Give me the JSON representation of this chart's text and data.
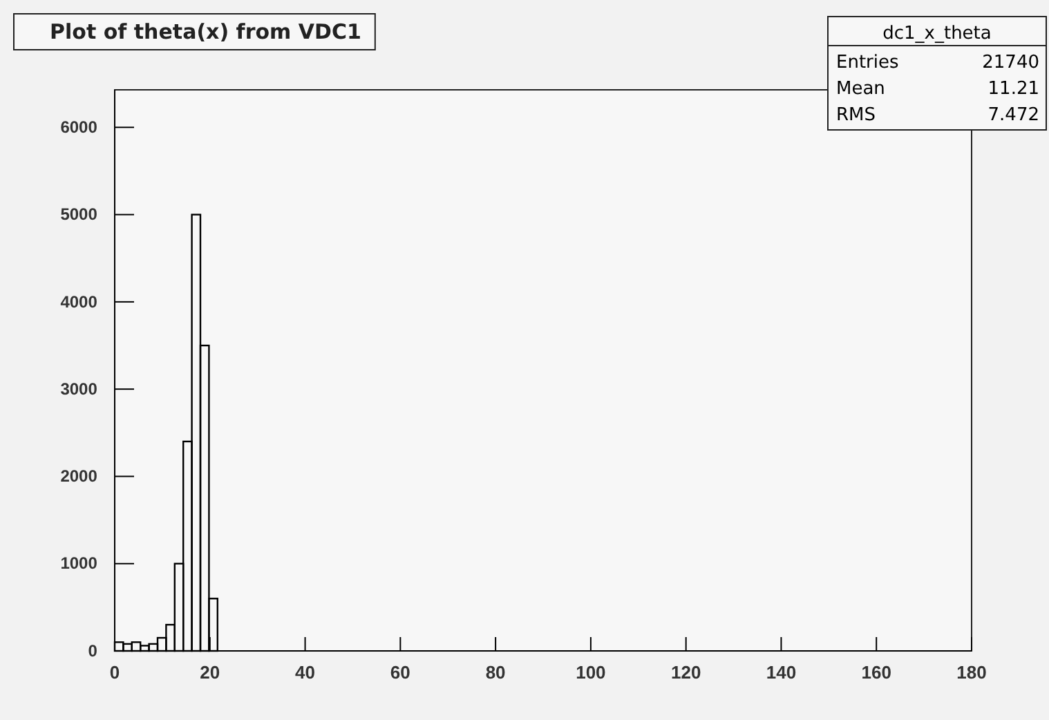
{
  "chart_data": {
    "type": "histogram",
    "title": "Plot of theta(x) from VDC1",
    "bins": [
      0,
      1.8,
      3.6,
      5.4,
      7.2,
      9,
      10.8,
      12.6,
      14.4,
      16.2,
      18,
      19.8,
      21.6
    ],
    "values": [
      100,
      80,
      100,
      60,
      80,
      150,
      300,
      1000,
      2400,
      5000,
      3500,
      600
    ],
    "color": "#000000",
    "xlim": [
      0,
      180
    ],
    "xticks": [
      0,
      20,
      40,
      60,
      80,
      100,
      120,
      140,
      160,
      180
    ],
    "ylim": [
      0,
      6430
    ],
    "yticks": [
      0,
      1000,
      2000,
      3000,
      4000,
      5000,
      6000
    ],
    "grid": false,
    "annotations": [
      "dc1_x_theta",
      "Entries 21740",
      "Mean 11.21",
      "RMS 7.472"
    ]
  }
}
